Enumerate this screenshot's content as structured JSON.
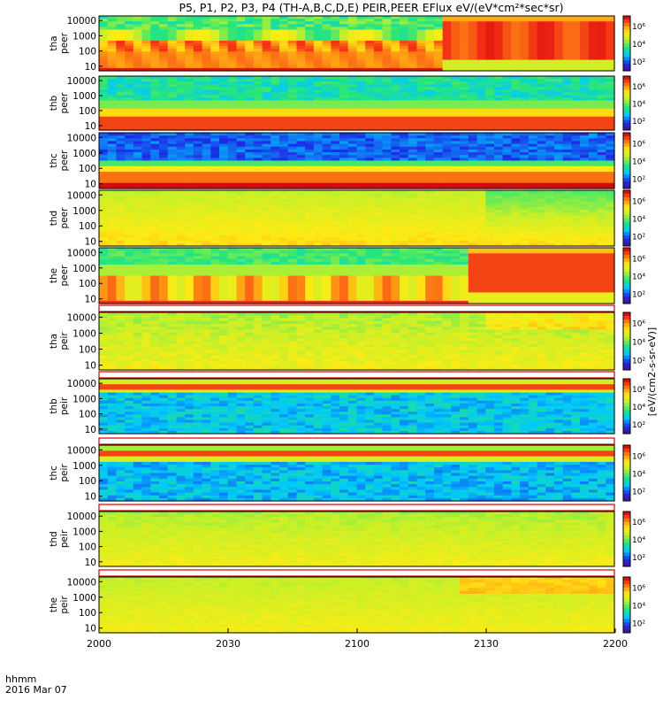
{
  "title": "P5, P1, P2, P3, P4 (TH-A,B,C,D,E) PEIR,PEER EFlux eV/(eV*cm²*sec*sr)",
  "time_axis": {
    "label_line1": "hhmm",
    "label_line2": "2016 Mar 07",
    "ticks": [
      "2000",
      "2030",
      "2100",
      "2130",
      "2200"
    ]
  },
  "colorbar": {
    "ticks": [
      "10⁶",
      "10⁴",
      "10²"
    ],
    "units_label": "[eV/(cm2-s-sr-eV)]"
  },
  "chart_data": [
    {
      "type": "heatmap",
      "probe": "tha",
      "species": "peer",
      "yticks": [
        "10000",
        "1000",
        "100",
        "10"
      ],
      "ylim": [
        5,
        20000
      ],
      "yscale": "log",
      "white_band": false,
      "profile": "peer_a"
    },
    {
      "type": "heatmap",
      "probe": "thb",
      "species": "peer",
      "yticks": [
        "10000",
        "1000",
        "100",
        "10"
      ],
      "ylim": [
        5,
        20000
      ],
      "yscale": "log",
      "white_band": false,
      "profile": "peer_b"
    },
    {
      "type": "heatmap",
      "probe": "thc",
      "species": "peer",
      "yticks": [
        "10000",
        "1000",
        "100",
        "10"
      ],
      "ylim": [
        5,
        20000
      ],
      "yscale": "log",
      "white_band": false,
      "profile": "peer_c"
    },
    {
      "type": "heatmap",
      "probe": "thd",
      "species": "peer",
      "yticks": [
        "10000",
        "1000",
        "100",
        "10"
      ],
      "ylim": [
        5,
        20000
      ],
      "yscale": "log",
      "white_band": false,
      "profile": "peer_d"
    },
    {
      "type": "heatmap",
      "probe": "the",
      "species": "peer",
      "yticks": [
        "10000",
        "1000",
        "100",
        "10"
      ],
      "ylim": [
        5,
        20000
      ],
      "yscale": "log",
      "white_band": false,
      "profile": "peer_e"
    },
    {
      "type": "heatmap",
      "probe": "tha",
      "species": "peir",
      "yticks": [
        "10000",
        "1000",
        "100",
        "10"
      ],
      "ylim": [
        5,
        20000
      ],
      "yscale": "log",
      "white_band": true,
      "profile": "peir_a"
    },
    {
      "type": "heatmap",
      "probe": "thb",
      "species": "peir",
      "yticks": [
        "10000",
        "1000",
        "100",
        "10"
      ],
      "ylim": [
        5,
        20000
      ],
      "yscale": "log",
      "white_band": true,
      "profile": "peir_b"
    },
    {
      "type": "heatmap",
      "probe": "thc",
      "species": "peir",
      "yticks": [
        "10000",
        "1000",
        "100",
        "10"
      ],
      "ylim": [
        5,
        20000
      ],
      "yscale": "log",
      "white_band": true,
      "profile": "peir_c"
    },
    {
      "type": "heatmap",
      "probe": "thd",
      "species": "peir",
      "yticks": [
        "10000",
        "1000",
        "100",
        "10"
      ],
      "ylim": [
        5,
        20000
      ],
      "yscale": "log",
      "white_band": true,
      "profile": "peir_d"
    },
    {
      "type": "heatmap",
      "probe": "the",
      "species": "peir",
      "yticks": [
        "10000",
        "1000",
        "100",
        "10"
      ],
      "ylim": [
        5,
        20000
      ],
      "yscale": "log",
      "white_band": true,
      "profile": "peir_e"
    }
  ]
}
